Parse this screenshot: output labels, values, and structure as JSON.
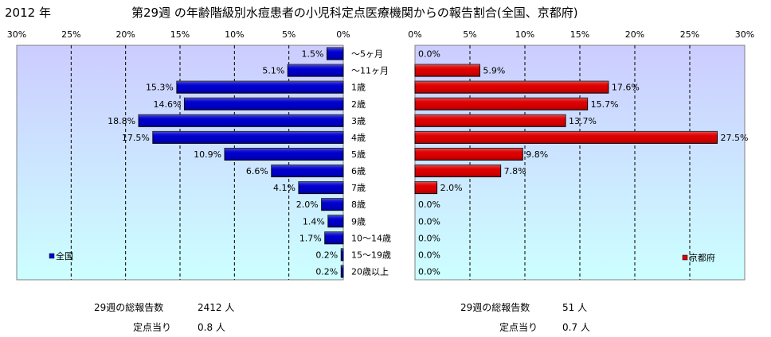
{
  "header": {
    "year": "2012 年",
    "title": "第29週 の年齢階級別水痘患者の小児科定点医療機関からの報告割合(全国、京都府)"
  },
  "chart_data": [
    {
      "type": "bar",
      "orientation": "horizontal",
      "direction": "right-to-left",
      "series": [
        {
          "name": "全国",
          "color": "#0000cc",
          "values": [
            1.5,
            5.1,
            15.3,
            14.6,
            18.8,
            17.5,
            10.9,
            6.6,
            4.1,
            2.0,
            1.4,
            1.7,
            0.2,
            0.2
          ],
          "labels": [
            "1.5%",
            "5.1%",
            "15.3%",
            "14.6%",
            "18.8%",
            "17.5%",
            "10.9%",
            "6.6%",
            "4.1%",
            "2.0%",
            "1.4%",
            "1.7%",
            "0.2%",
            "0.2%"
          ]
        }
      ],
      "xlim": [
        0,
        30
      ],
      "ticks": [
        "0%",
        "5%",
        "10%",
        "15%",
        "20%",
        "25%",
        "30%"
      ],
      "legend": "bottom-left",
      "grid": true
    },
    {
      "type": "bar",
      "orientation": "horizontal",
      "direction": "left-to-right",
      "series": [
        {
          "name": "京都府",
          "color": "#dd0000",
          "values": [
            0.0,
            5.9,
            17.6,
            15.7,
            13.7,
            27.5,
            9.8,
            7.8,
            2.0,
            0.0,
            0.0,
            0.0,
            0.0,
            0.0
          ],
          "labels": [
            "0.0%",
            "5.9%",
            "17.6%",
            "15.7%",
            "13.7%",
            "27.5%",
            "9.8%",
            "7.8%",
            "2.0%",
            "0.0%",
            "0.0%",
            "0.0%",
            "0.0%",
            "0.0%"
          ]
        }
      ],
      "xlim": [
        0,
        30
      ],
      "ticks": [
        "0%",
        "5%",
        "10%",
        "15%",
        "20%",
        "25%",
        "30%"
      ],
      "legend": "bottom-right",
      "grid": true
    }
  ],
  "categories": [
    "～5ヶ月",
    "～11ヶ月",
    "1歳",
    "2歳",
    "3歳",
    "4歳",
    "5歳",
    "6歳",
    "7歳",
    "8歳",
    "9歳",
    "10～14歳",
    "15～19歳",
    "20歳以上"
  ],
  "colors": {
    "plot_gradient_top": "#ccccff",
    "plot_gradient_bottom": "#ccffff",
    "grid": "#000000"
  },
  "footer": {
    "national": {
      "total_label": "29週の総報告数",
      "total_value": "2412 人",
      "per_site_label": "定点当り",
      "per_site_value": "0.8 人"
    },
    "kyoto": {
      "total_label": "29週の総報告数",
      "total_value": "51 人",
      "per_site_label": "定点当り",
      "per_site_value": "0.7 人"
    }
  }
}
